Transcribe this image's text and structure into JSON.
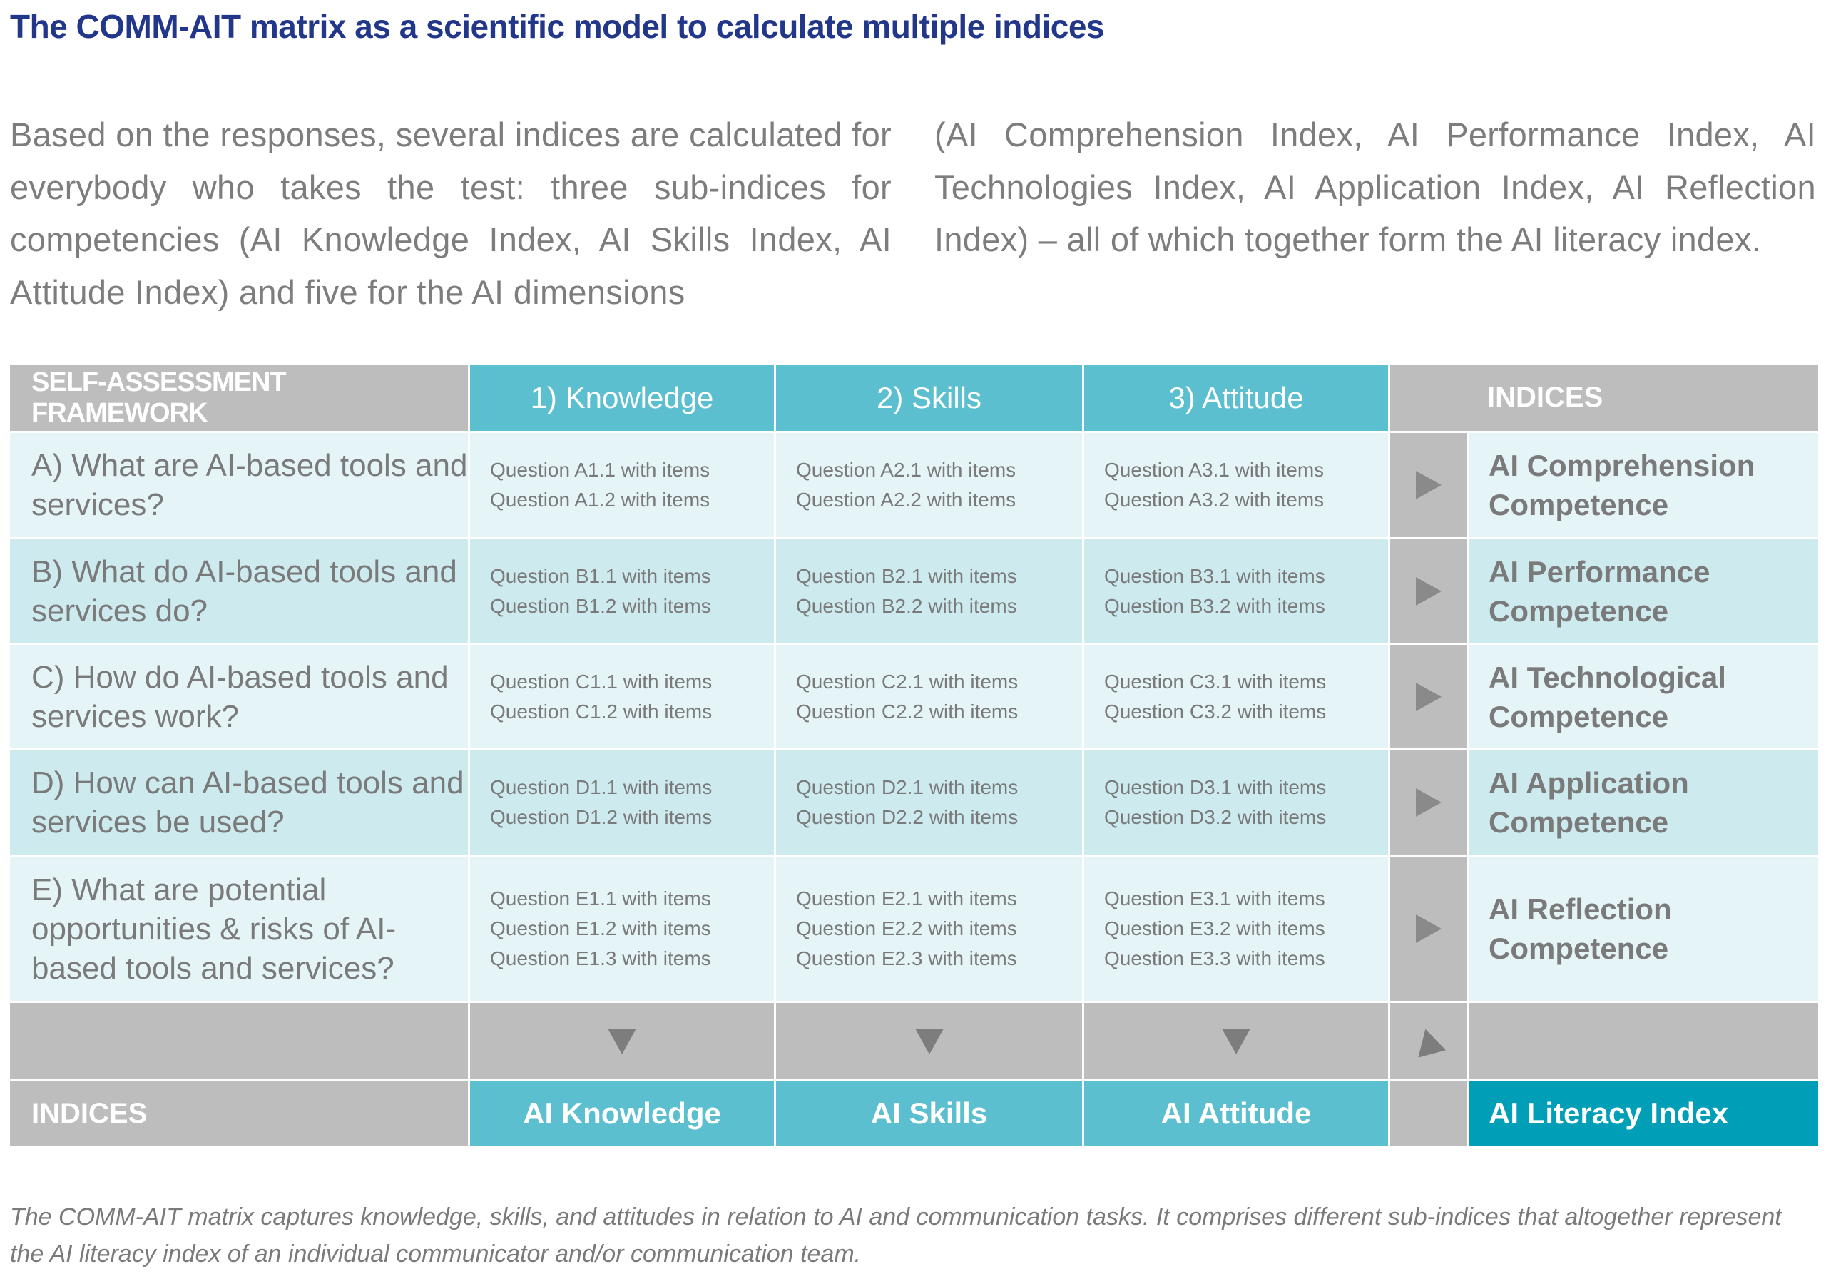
{
  "title": "The COMM-AIT matrix as a scientific model to calculate multiple indices",
  "intro_left": "Based on the responses, several indices are calculated for everybody who takes the test: three sub-indices for competencies (AI Knowledge Index, AI Skills Index, AI Attitude Index) and five for the AI dimensions",
  "intro_right": "(AI Comprehension Index, AI Performance Index, AI Technologies Index, AI Application Index, AI Reflection Index) – all of which together form the AI literacy index.",
  "table": {
    "header": {
      "framework": "SELF-ASSESSMENT FRAMEWORK",
      "col1": "1) Knowledge",
      "col2": "2) Skills",
      "col3": "3) Attitude",
      "indices": "INDICES"
    },
    "rows": [
      {
        "question": "A) What are AI-based tools and services?",
        "c1": [
          "Question A1.1 with items",
          "Question A1.2 with items"
        ],
        "c2": [
          "Question A2.1 with items",
          "Question A2.2 with items"
        ],
        "c3": [
          "Question A3.1 with items",
          "Question A3.2 with items"
        ],
        "index": "AI Comprehension Competence"
      },
      {
        "question": "B) What do AI-based tools and services do?",
        "c1": [
          "Question B1.1 with items",
          "Question B1.2 with items"
        ],
        "c2": [
          "Question B2.1 with items",
          "Question B2.2 with items"
        ],
        "c3": [
          "Question B3.1 with items",
          "Question B3.2 with items"
        ],
        "index": "AI Performance Competence"
      },
      {
        "question": "C) How do AI-based tools and services work?",
        "c1": [
          "Question C1.1 with items",
          "Question C1.2 with items"
        ],
        "c2": [
          "Question C2.1 with items",
          "Question C2.2 with items"
        ],
        "c3": [
          "Question C3.1 with items",
          "Question C3.2 with items"
        ],
        "index": "AI Technological Competence"
      },
      {
        "question": "D) How can AI-based tools and services be used?",
        "c1": [
          "Question D1.1 with items",
          "Question D1.2 with items"
        ],
        "c2": [
          "Question D2.1 with items",
          "Question D2.2 with items"
        ],
        "c3": [
          "Question D3.1 with items",
          "Question D3.2 with items"
        ],
        "index": "AI Application Competence"
      },
      {
        "question": "E) What are potential opportunities & risks of AI-based tools and services?",
        "c1": [
          "Question E1.1 with items",
          "Question E1.2 with items",
          "Question E1.3 with items"
        ],
        "c2": [
          "Question E2.1 with items",
          "Question E2.2 with items",
          "Question E2.3 with items"
        ],
        "c3": [
          "Question E3.1 with items",
          "Question E3.2 with items",
          "Question E3.3 with items"
        ],
        "index": "AI Reflection Competence"
      }
    ],
    "footer": {
      "indices": "INDICES",
      "col1": "AI Knowledge",
      "col2": "AI Skills",
      "col3": "AI Attitude",
      "literacy": "AI Literacy Index"
    }
  },
  "caption": "The COMM-AIT matrix captures knowledge, skills, and attitudes in relation to AI and communication tasks. It comprises different sub-indices that altogether represent the AI literacy index of an individual communicator and/or communication team.",
  "colors": {
    "title": "#22378a",
    "teal": "#5bbfcf",
    "dark_teal": "#009fb7",
    "gray": "#bdbdbd"
  }
}
